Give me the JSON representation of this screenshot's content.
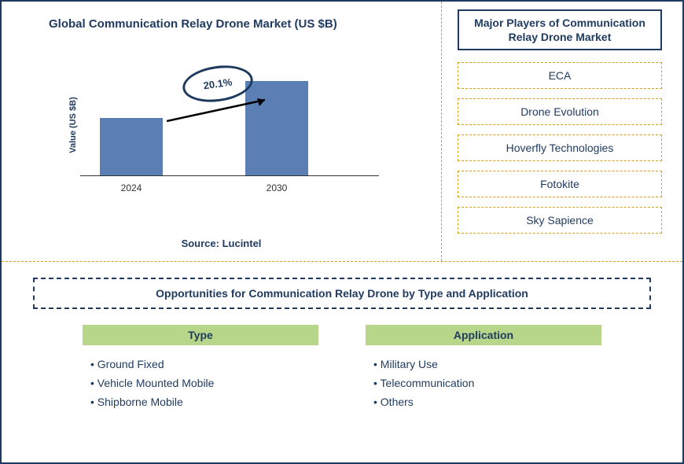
{
  "chart": {
    "title": "Global Communication Relay Drone Market (US $B)",
    "type": "bar",
    "y_label": "Value (US $B)",
    "categories": [
      "2024",
      "2030"
    ],
    "values": [
      55,
      90
    ],
    "bar_color": "#5b7fb5",
    "growth_label": "20.1%",
    "ellipse_border": "#1f3a5f",
    "axis_color": "#333333",
    "source": "Source: Lucintel"
  },
  "players": {
    "title": "Major Players of Communication Relay Drone Market",
    "items": [
      "ECA",
      "Drone Evolution",
      "Hoverfly Technologies",
      "Fotokite",
      "Sky Sapience"
    ]
  },
  "opportunities": {
    "title": "Opportunities for Communication Relay Drone by Type and Application",
    "header_bg": "#b8d68a",
    "columns": [
      {
        "header": "Type",
        "items": [
          "Ground Fixed",
          "Vehicle Mounted Mobile",
          "Shipborne Mobile"
        ]
      },
      {
        "header": "Application",
        "items": [
          "Military Use",
          "Telecommunication",
          "Others"
        ]
      }
    ]
  },
  "colors": {
    "primary": "#1f3a5f",
    "accent_dash": "#d4a017",
    "background": "#ffffff"
  }
}
